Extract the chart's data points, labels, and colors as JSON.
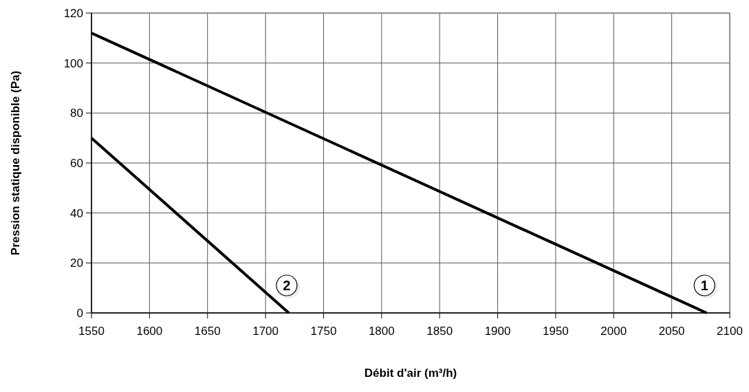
{
  "chart_data": {
    "type": "line",
    "xlabel": "Débit d'air (m³/h)",
    "ylabel": "Pression statique disponible (Pa)",
    "xlim": [
      1550,
      2100
    ],
    "xticks": [
      1550,
      1600,
      1650,
      1700,
      1750,
      1800,
      1850,
      1900,
      1950,
      2000,
      2050,
      2100
    ],
    "ylim": [
      0,
      120
    ],
    "yticks": [
      0,
      20,
      40,
      60,
      80,
      100,
      120
    ],
    "grid": true,
    "marker": "none",
    "line_style": "solid",
    "series": [
      {
        "name": "1",
        "color": "#000000",
        "x": [
          1550,
          2080
        ],
        "values": [
          112,
          0
        ]
      },
      {
        "name": "2",
        "color": "#000000",
        "x": [
          1550,
          1720
        ],
        "values": [
          70,
          0
        ]
      }
    ]
  }
}
